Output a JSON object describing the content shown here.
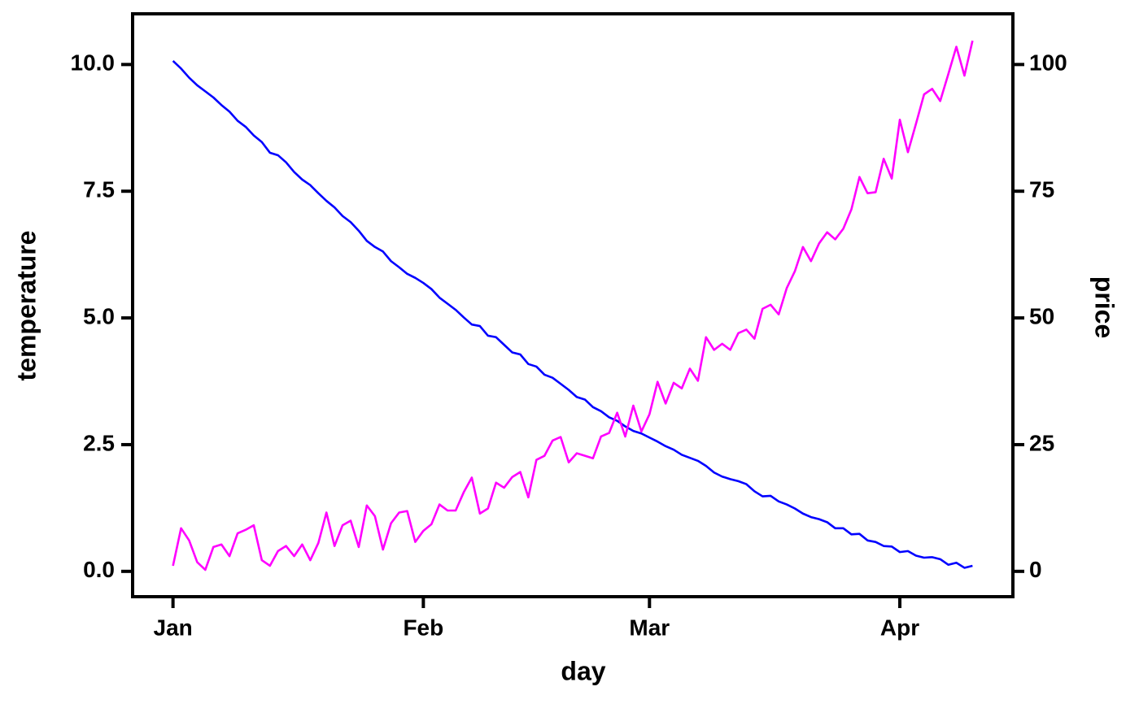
{
  "chart_data": {
    "type": "line",
    "x_label": "day",
    "y_label": "temperature",
    "y2_label": "price",
    "x": [
      0,
      1,
      2,
      3,
      4,
      5,
      6,
      7,
      8,
      9,
      10,
      11,
      12,
      13,
      14,
      15,
      16,
      17,
      18,
      19,
      20,
      21,
      22,
      23,
      24,
      25,
      26,
      27,
      28,
      29,
      30,
      31,
      32,
      33,
      34,
      35,
      36,
      37,
      38,
      39,
      40,
      41,
      42,
      43,
      44,
      45,
      46,
      47,
      48,
      49,
      50,
      51,
      52,
      53,
      54,
      55,
      56,
      57,
      58,
      59,
      60,
      61,
      62,
      63,
      64,
      65,
      66,
      67,
      68,
      69,
      70,
      71,
      72,
      73,
      74,
      75,
      76,
      77,
      78,
      79,
      80,
      81,
      82,
      83,
      84,
      85,
      86,
      87,
      88,
      89,
      90,
      91,
      92,
      93,
      94,
      95,
      96,
      97,
      98,
      99
    ],
    "series": [
      {
        "color": "#0000ff",
        "axis": "y",
        "values": [
          10.07,
          9.92,
          9.74,
          9.59,
          9.47,
          9.35,
          9.2,
          9.07,
          8.89,
          8.77,
          8.6,
          8.47,
          8.26,
          8.21,
          8.07,
          7.88,
          7.73,
          7.62,
          7.46,
          7.31,
          7.18,
          7.01,
          6.89,
          6.72,
          6.52,
          6.4,
          6.31,
          6.12,
          6.0,
          5.87,
          5.79,
          5.69,
          5.57,
          5.4,
          5.28,
          5.16,
          5.01,
          4.87,
          4.84,
          4.65,
          4.62,
          4.47,
          4.32,
          4.28,
          4.09,
          4.04,
          3.88,
          3.82,
          3.7,
          3.58,
          3.44,
          3.39,
          3.24,
          3.16,
          3.04,
          2.97,
          2.86,
          2.77,
          2.72,
          2.64,
          2.56,
          2.47,
          2.4,
          2.3,
          2.24,
          2.18,
          2.08,
          1.95,
          1.87,
          1.82,
          1.78,
          1.72,
          1.58,
          1.48,
          1.49,
          1.38,
          1.32,
          1.24,
          1.14,
          1.07,
          1.03,
          0.97,
          0.85,
          0.85,
          0.73,
          0.74,
          0.61,
          0.58,
          0.5,
          0.49,
          0.38,
          0.4,
          0.31,
          0.27,
          0.28,
          0.24,
          0.13,
          0.17,
          0.07,
          0.11
        ]
      },
      {
        "color": "#ff00ff",
        "axis": "y2",
        "values": [
          1.1,
          8.5,
          6.1,
          1.8,
          0.3,
          4.8,
          5.3,
          3.0,
          7.5,
          8.2,
          9.1,
          2.2,
          1.1,
          4.0,
          5.0,
          3.0,
          5.3,
          2.2,
          5.6,
          11.6,
          5.0,
          9.1,
          10.0,
          4.8,
          13.0,
          10.9,
          4.3,
          9.5,
          11.6,
          11.9,
          5.8,
          8.0,
          9.3,
          13.2,
          12.0,
          12.0,
          15.6,
          18.5,
          11.4,
          12.4,
          17.5,
          16.5,
          18.6,
          19.6,
          14.6,
          22.0,
          22.8,
          25.8,
          26.5,
          21.5,
          23.3,
          22.8,
          22.3,
          26.6,
          27.3,
          31.3,
          26.6,
          32.7,
          27.6,
          31.0,
          37.4,
          33.1,
          37.2,
          36.1,
          40.0,
          37.6,
          46.2,
          43.7,
          44.9,
          43.7,
          47.0,
          47.7,
          45.9,
          51.8,
          52.6,
          50.7,
          55.9,
          59.2,
          64.0,
          61.2,
          64.7,
          66.9,
          65.5,
          67.6,
          71.4,
          77.8,
          74.6,
          74.8,
          81.4,
          77.5,
          89.1,
          82.7,
          88.3,
          94.1,
          95.2,
          92.8,
          98.1,
          103.5,
          97.8,
          104.7
        ]
      }
    ],
    "xlim": [
      -5,
      104
    ],
    "xticks": [
      {
        "value": 0,
        "label": "Jan"
      },
      {
        "value": 31,
        "label": "Feb"
      },
      {
        "value": 59,
        "label": "Mar"
      },
      {
        "value": 90,
        "label": "Apr"
      }
    ],
    "ylim": [
      -0.5,
      11.0
    ],
    "yticks": [
      {
        "value": 0,
        "label": "0.0"
      },
      2.5,
      {
        "value": 5,
        "label": "5.0"
      },
      7.5,
      {
        "value": 10,
        "label": "10.0"
      }
    ],
    "y2lim": [
      -5,
      110
    ],
    "y2ticks": [
      0,
      25,
      50,
      75,
      100
    ],
    "grid": false
  }
}
